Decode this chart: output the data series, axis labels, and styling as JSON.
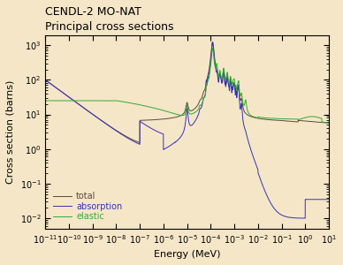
{
  "title_line1": "CENDL-2 MO-NAT",
  "title_line2": "Principal cross sections",
  "xlabel": "Energy (MeV)",
  "ylabel": "Cross section (barns)",
  "background_color": "#f5e6c8",
  "plot_bg_color": "#f5e6c8",
  "xlim_log": [
    -11,
    1
  ],
  "ylim_log": [
    -2.3,
    3.3
  ],
  "legend_labels": [
    "total",
    "absorption",
    "elastic"
  ],
  "legend_colors": [
    "#5a4a3a",
    "#3333bb",
    "#33aa33"
  ],
  "title_fontsize": 9,
  "axis_fontsize": 8,
  "tick_fontsize": 7
}
